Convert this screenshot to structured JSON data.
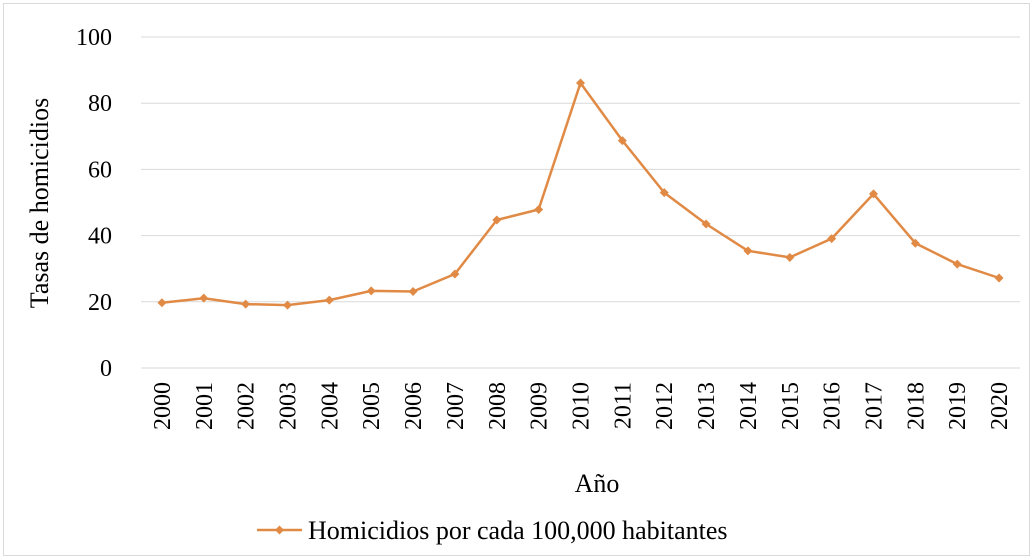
{
  "chart_data": {
    "type": "line",
    "title": "",
    "xlabel": "Año",
    "ylabel": "Tasas de homicidios",
    "ylim": [
      0,
      100
    ],
    "yticks": [
      "0",
      "20",
      "40",
      "60",
      "80",
      "100"
    ],
    "grid": true,
    "legend_position": "bottom",
    "categories": [
      "2000",
      "2001",
      "2002",
      "2003",
      "2004",
      "2005",
      "2006",
      "2007",
      "2008",
      "2009",
      "2010",
      "2011",
      "2012",
      "2013",
      "2014",
      "2015",
      "2016",
      "2017",
      "2018",
      "2019",
      "2020"
    ],
    "series": [
      {
        "name": "Homicidios por cada 100,000 habitantes",
        "color": "#e08a45",
        "marker": "diamond",
        "values": [
          19.7,
          21.1,
          19.3,
          19.0,
          20.5,
          23.3,
          23.1,
          28.4,
          44.7,
          47.9,
          86.1,
          68.7,
          53.0,
          43.5,
          35.4,
          33.4,
          39.1,
          52.6,
          37.7,
          31.4,
          27.2
        ]
      }
    ]
  }
}
